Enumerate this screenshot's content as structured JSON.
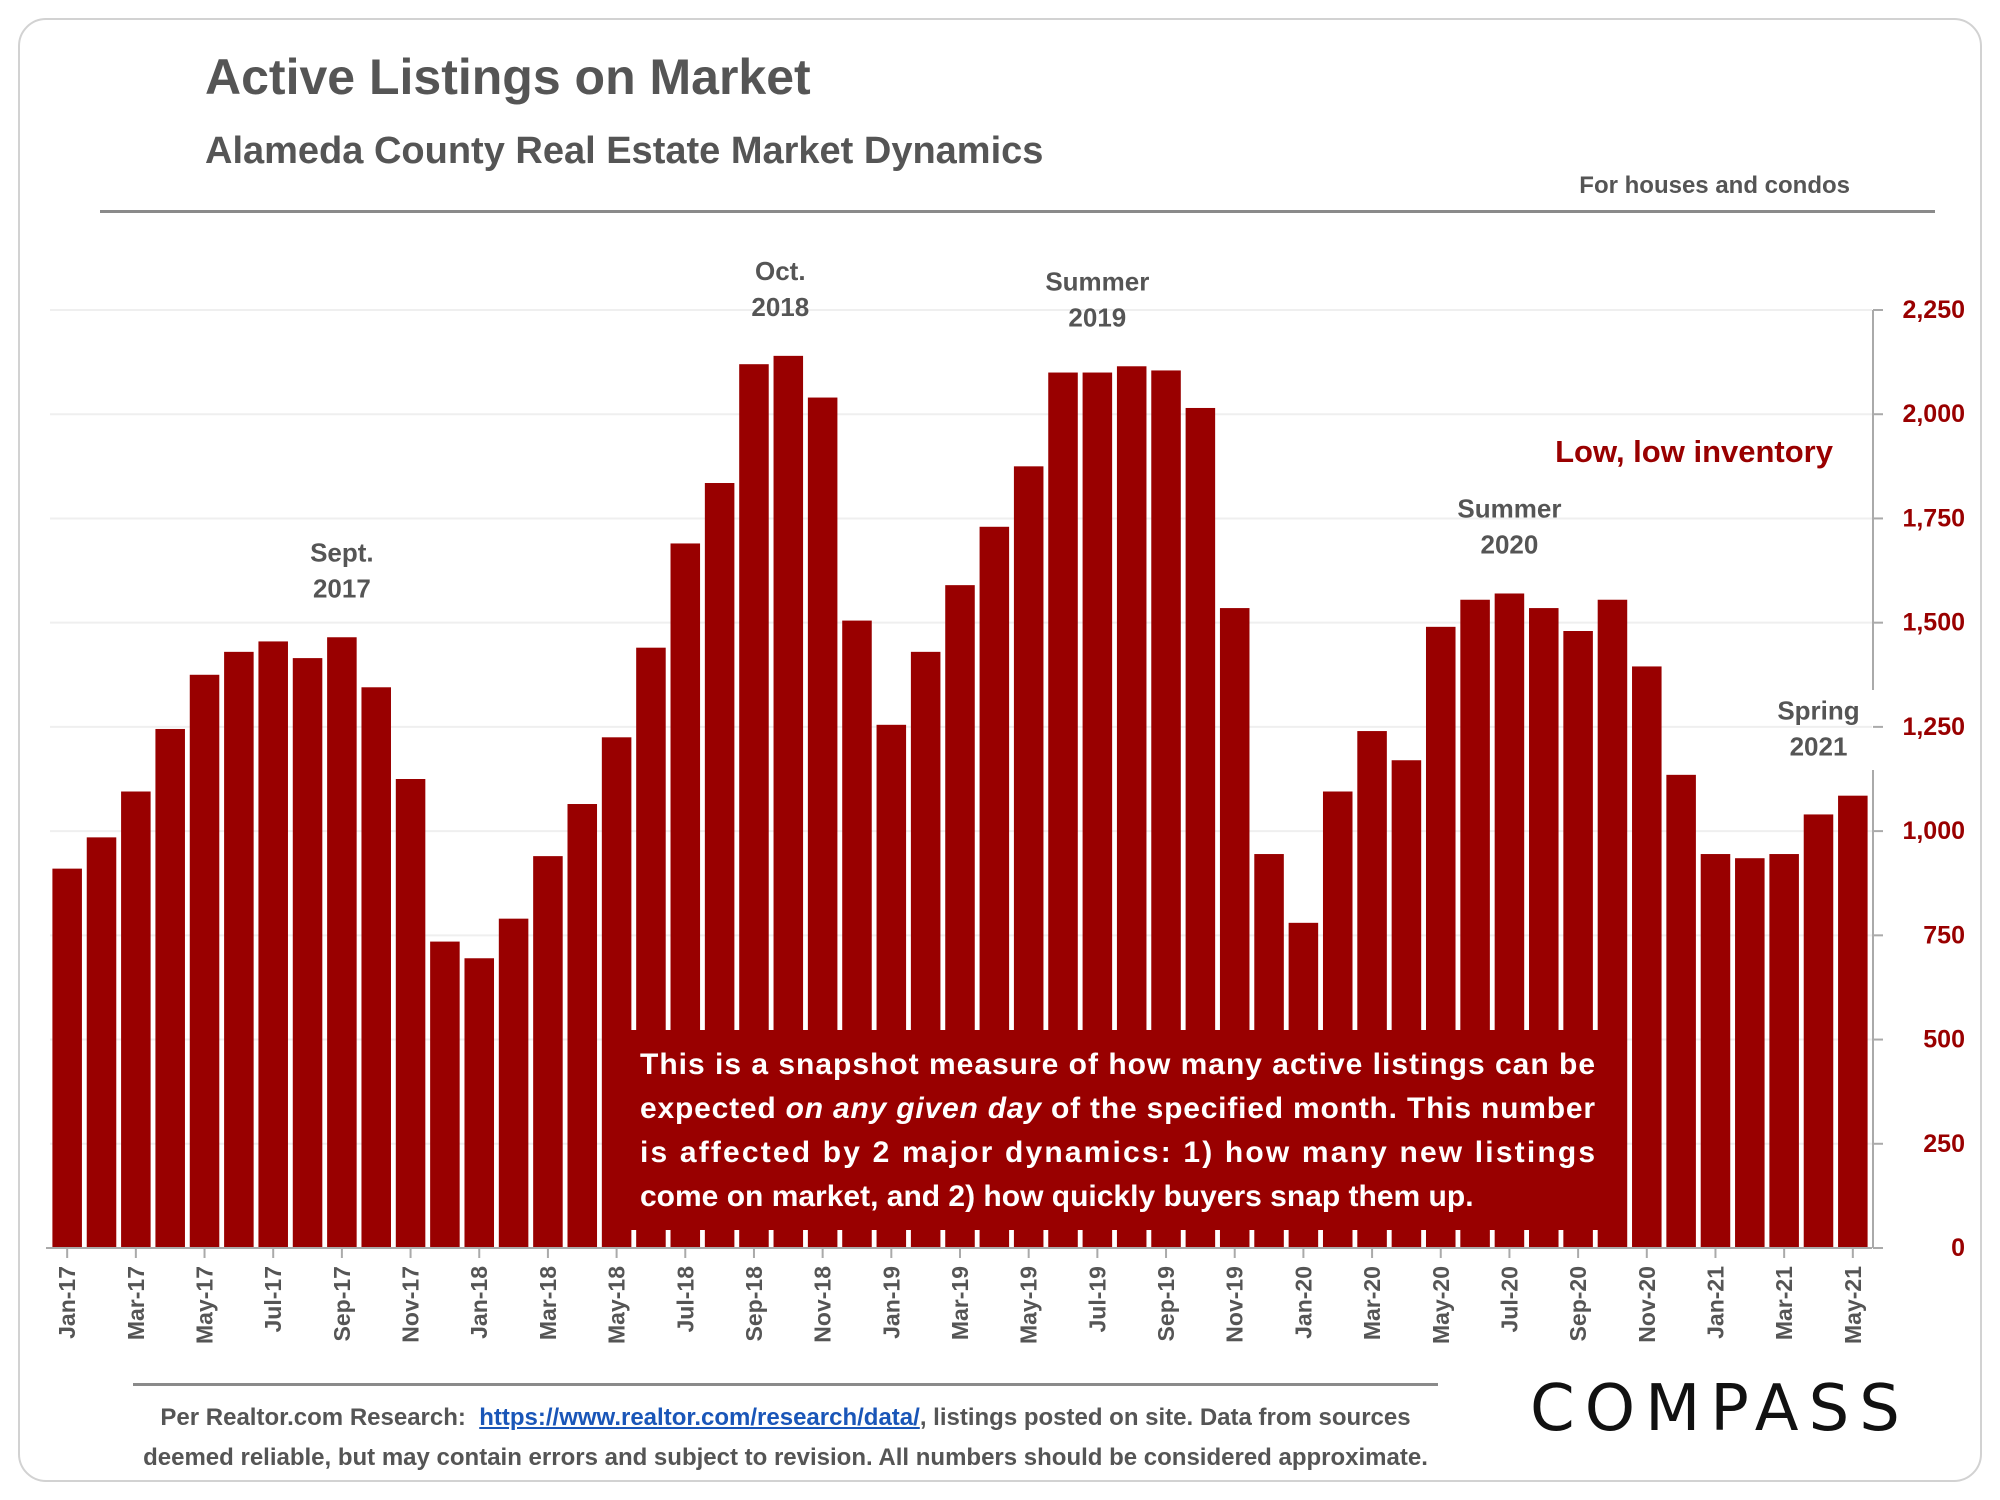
{
  "header": {
    "title": "Active Listings on Market",
    "subtitle": "Alameda County Real Estate Market Dynamics",
    "note": "For houses and condos"
  },
  "chart_data": {
    "type": "bar",
    "categories": [
      "Jan-17",
      "Feb-17",
      "Mar-17",
      "Apr-17",
      "May-17",
      "Jun-17",
      "Jul-17",
      "Aug-17",
      "Sep-17",
      "Oct-17",
      "Nov-17",
      "Dec-17",
      "Jan-18",
      "Feb-18",
      "Mar-18",
      "Apr-18",
      "May-18",
      "Jun-18",
      "Jul-18",
      "Aug-18",
      "Sep-18",
      "Oct-18",
      "Nov-18",
      "Dec-18",
      "Jan-19",
      "Feb-19",
      "Mar-19",
      "Apr-19",
      "May-19",
      "Jun-19",
      "Jul-19",
      "Aug-19",
      "Sep-19",
      "Oct-19",
      "Nov-19",
      "Dec-19",
      "Jan-20",
      "Feb-20",
      "Mar-20",
      "Apr-20",
      "May-20",
      "Jun-20",
      "Jul-20",
      "Aug-20",
      "Sep-20",
      "Oct-20",
      "Nov-20",
      "Dec-20",
      "Jan-21",
      "Feb-21",
      "Mar-21",
      "Apr-21",
      "May-21"
    ],
    "tick_labels": [
      "Jan-17",
      "Mar-17",
      "May-17",
      "Jul-17",
      "Sep-17",
      "Nov-17",
      "Jan-18",
      "Mar-18",
      "May-18",
      "Jul-18",
      "Sep-18",
      "Nov-18",
      "Jan-19",
      "Mar-19",
      "May-19",
      "Jul-19",
      "Sep-19",
      "Nov-19",
      "Jan-20",
      "Mar-20",
      "May-20",
      "Jul-20",
      "Sep-20",
      "Nov-20",
      "Jan-21",
      "Mar-21",
      "May-21"
    ],
    "values": [
      910,
      985,
      1095,
      1245,
      1375,
      1430,
      1455,
      1415,
      1465,
      1345,
      1125,
      735,
      695,
      790,
      940,
      1065,
      1225,
      1440,
      1690,
      1835,
      2120,
      2140,
      2040,
      1505,
      1255,
      1430,
      1590,
      1730,
      1875,
      2100,
      2100,
      2115,
      2105,
      2015,
      1535,
      945,
      780,
      1095,
      1240,
      1170,
      1490,
      1555,
      1570,
      1535,
      1480,
      1555,
      1395,
      1135,
      945,
      935,
      945,
      1040,
      1085
    ],
    "ylim": [
      0,
      2250
    ],
    "yticks": [
      "0",
      "250",
      "500",
      "750",
      "1,000",
      "1,250",
      "1,500",
      "1,750",
      "2,000",
      "2,250"
    ],
    "ytick_values": [
      0,
      250,
      500,
      750,
      1000,
      1250,
      1500,
      1750,
      2000,
      2250
    ],
    "y_axis_position": "right",
    "grid": true,
    "bar_color": "#990000",
    "annotations": [
      {
        "label": [
          "Sept.",
          "2017"
        ],
        "category": "Sep-17"
      },
      {
        "label": [
          "Oct.",
          "2018"
        ],
        "category": "Oct-18"
      },
      {
        "label": [
          "Summer",
          "2019"
        ],
        "category": "Jul-19"
      },
      {
        "label": [
          "Summer",
          "2020"
        ],
        "category": "Jul-20"
      },
      {
        "label": [
          "Spring",
          "2021"
        ],
        "category": "Apr-21"
      }
    ],
    "callout": "Low, low inventory",
    "callout_color": "#990000",
    "textbox": {
      "line1": "This is a snapshot measure of how many active listings can be",
      "line2_pre": "expected ",
      "line2_em": "on any given day",
      "line2_post": " of the specified month. This number",
      "line3": "is affected by 2 major dynamics: 1) how many new listings",
      "line4": "come on market, and 2) how quickly buyers snap them up."
    }
  },
  "footer": {
    "source_prefix": "Per Realtor.com Research:",
    "source_link": "https://www.realtor.com/research/data/",
    "source_rest": ", listings posted on site. Data from sources",
    "source_line2": "deemed reliable, but may contain errors and subject to revision. All numbers should be considered approximate.",
    "logo": "COMPASS"
  }
}
